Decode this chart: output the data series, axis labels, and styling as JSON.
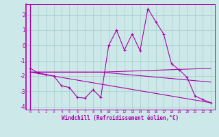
{
  "xlabel": "Windchill (Refroidissement éolien,°C)",
  "xlim": [
    -0.5,
    23.5
  ],
  "ylim": [
    -4.2,
    2.7
  ],
  "yticks": [
    -4,
    -3,
    -2,
    -1,
    0,
    1,
    2
  ],
  "xticks": [
    0,
    1,
    2,
    3,
    4,
    5,
    6,
    7,
    8,
    9,
    10,
    11,
    12,
    13,
    14,
    15,
    16,
    17,
    18,
    19,
    20,
    21,
    22,
    23
  ],
  "background_color": "#cce8e8",
  "grid_color": "#aacccc",
  "line_color": "#aa00aa",
  "series": {
    "line1_x": [
      0,
      1,
      2,
      3,
      4,
      5,
      6,
      7,
      8,
      9,
      10,
      11,
      12,
      13,
      14,
      15,
      16,
      17,
      18,
      19,
      20,
      21,
      22,
      23
    ],
    "line1_y": [
      -1.5,
      -1.8,
      -1.9,
      -2.0,
      -2.65,
      -2.75,
      -3.4,
      -3.45,
      -2.9,
      -3.4,
      0.0,
      1.0,
      -0.3,
      0.75,
      -0.35,
      2.4,
      1.55,
      0.75,
      -1.2,
      -1.6,
      -2.1,
      -3.3,
      -3.55,
      -3.75
    ],
    "line2_x": [
      0,
      9,
      23
    ],
    "line2_y": [
      -1.75,
      -1.75,
      -1.5
    ],
    "line3_x": [
      0,
      23
    ],
    "line3_y": [
      -1.75,
      -3.75
    ],
    "line4_x": [
      0,
      9,
      23
    ],
    "line4_y": [
      -1.75,
      -1.75,
      -2.4
    ]
  }
}
